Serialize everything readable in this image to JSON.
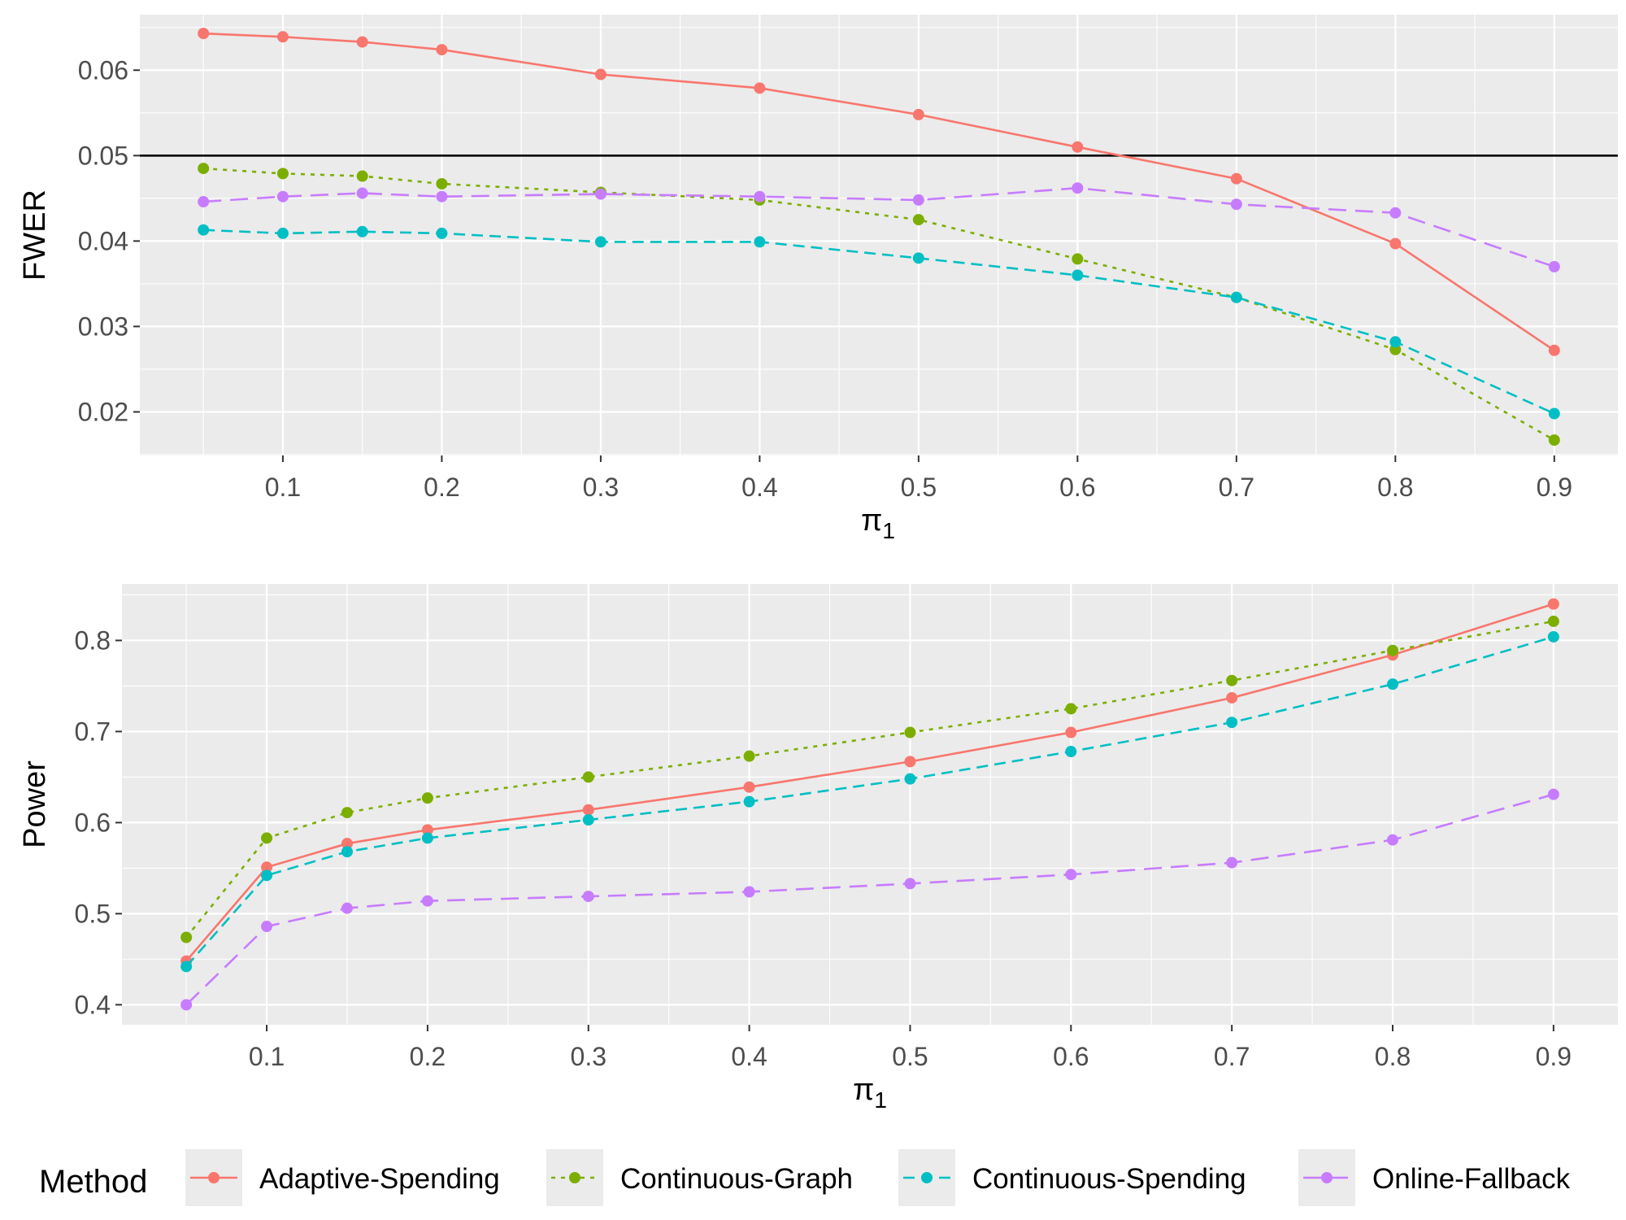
{
  "chart_data": [
    {
      "type": "line",
      "panel": "top",
      "xlabel": "π",
      "xlabel_sub": "1",
      "ylabel": "FWER",
      "xlim": [
        0.01,
        0.94
      ],
      "ylim": [
        0.0149,
        0.0665
      ],
      "x_ticks": [
        0.1,
        0.2,
        0.3,
        0.4,
        0.5,
        0.6,
        0.7,
        0.8,
        0.9
      ],
      "x_tick_labels": [
        "0.1",
        "0.2",
        "0.3",
        "0.4",
        "0.5",
        "0.6",
        "0.7",
        "0.8",
        "0.9"
      ],
      "y_ticks": [
        0.02,
        0.03,
        0.04,
        0.05,
        0.06
      ],
      "y_tick_labels": [
        "0.02",
        "0.03",
        "0.04",
        "0.05",
        "0.06"
      ],
      "reference_line": 0.05,
      "x": [
        0.05,
        0.1,
        0.15,
        0.2,
        0.3,
        0.4,
        0.5,
        0.6,
        0.7,
        0.8,
        0.9
      ],
      "series": [
        {
          "key": "adaptive",
          "values": [
            0.0643,
            0.0639,
            0.0633,
            0.0624,
            0.0595,
            0.0579,
            0.0548,
            0.051,
            0.0473,
            0.0397,
            0.0272
          ]
        },
        {
          "key": "graph",
          "values": [
            0.0485,
            0.0479,
            0.0476,
            0.0467,
            0.0457,
            0.0448,
            0.0425,
            0.0379,
            0.0334,
            0.0273,
            0.0167
          ]
        },
        {
          "key": "spending",
          "values": [
            0.0413,
            0.0409,
            0.0411,
            0.0409,
            0.0399,
            0.0399,
            0.038,
            0.036,
            0.0334,
            0.0282,
            0.0198
          ]
        },
        {
          "key": "fallback",
          "values": [
            0.0446,
            0.0452,
            0.0456,
            0.0452,
            0.0455,
            0.0452,
            0.0448,
            0.0462,
            0.0443,
            0.0433,
            0.037
          ]
        }
      ]
    },
    {
      "type": "line",
      "panel": "bottom",
      "xlabel": "π",
      "xlabel_sub": "1",
      "ylabel": "Power",
      "xlim": [
        0.01,
        0.94
      ],
      "ylim": [
        0.378,
        0.862
      ],
      "x_ticks": [
        0.1,
        0.2,
        0.3,
        0.4,
        0.5,
        0.6,
        0.7,
        0.8,
        0.9
      ],
      "x_tick_labels": [
        "0.1",
        "0.2",
        "0.3",
        "0.4",
        "0.5",
        "0.6",
        "0.7",
        "0.8",
        "0.9"
      ],
      "y_ticks": [
        0.4,
        0.5,
        0.6,
        0.7,
        0.8
      ],
      "y_tick_labels": [
        "0.4",
        "0.5",
        "0.6",
        "0.7",
        "0.8"
      ],
      "x": [
        0.05,
        0.1,
        0.15,
        0.2,
        0.3,
        0.4,
        0.5,
        0.6,
        0.7,
        0.8,
        0.9
      ],
      "series": [
        {
          "key": "adaptive",
          "values": [
            0.448,
            0.551,
            0.577,
            0.592,
            0.614,
            0.639,
            0.667,
            0.699,
            0.737,
            0.784,
            0.84
          ]
        },
        {
          "key": "graph",
          "values": [
            0.474,
            0.583,
            0.611,
            0.627,
            0.65,
            0.673,
            0.699,
            0.725,
            0.756,
            0.789,
            0.821
          ]
        },
        {
          "key": "spending",
          "values": [
            0.442,
            0.542,
            0.568,
            0.583,
            0.603,
            0.623,
            0.648,
            0.678,
            0.71,
            0.752,
            0.804
          ]
        },
        {
          "key": "fallback",
          "values": [
            0.4,
            0.486,
            0.506,
            0.514,
            0.519,
            0.524,
            0.533,
            0.543,
            0.556,
            0.581,
            0.631
          ]
        }
      ]
    }
  ],
  "legend": {
    "title": "Method",
    "placement": "bottom",
    "items": [
      {
        "key": "adaptive",
        "label": "Adaptive-Spending",
        "color": "#F8766D",
        "linetype": "solid"
      },
      {
        "key": "graph",
        "label": "Continuous-Graph",
        "color": "#7CAE00",
        "linetype": "dotted"
      },
      {
        "key": "spending",
        "label": "Continuous-Spending",
        "color": "#00BFC4",
        "linetype": "dashed"
      },
      {
        "key": "fallback",
        "label": "Online-Fallback",
        "color": "#C77CFF",
        "linetype": "longdash"
      }
    ]
  }
}
